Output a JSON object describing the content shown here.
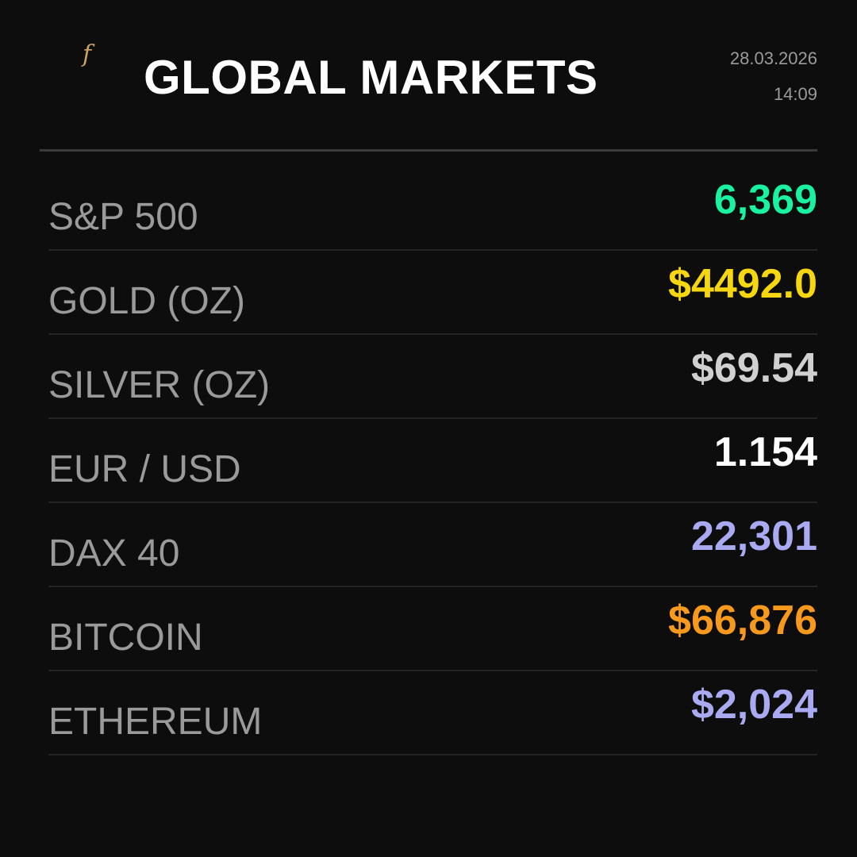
{
  "header": {
    "logo": "f",
    "title": "GLOBAL MARKETS",
    "date": "28.03.2026",
    "time": "14:09"
  },
  "markets": [
    {
      "label": "S&P 500",
      "value": "6,369",
      "color": "#19f2a0"
    },
    {
      "label": "GOLD (OZ)",
      "value": "$4492.0",
      "color": "#f5d60f"
    },
    {
      "label": "SILVER (OZ)",
      "value": "$69.54",
      "color": "#d0d0d0"
    },
    {
      "label": "EUR / USD",
      "value": "1.154",
      "color": "#ffffff"
    },
    {
      "label": "DAX 40",
      "value": "22,301",
      "color": "#a9aaf2"
    },
    {
      "label": "BITCOIN",
      "value": "$66,876",
      "color": "#f6991c"
    },
    {
      "label": "ETHEREUM",
      "value": "$2,024",
      "color": "#a9aaf2"
    }
  ]
}
